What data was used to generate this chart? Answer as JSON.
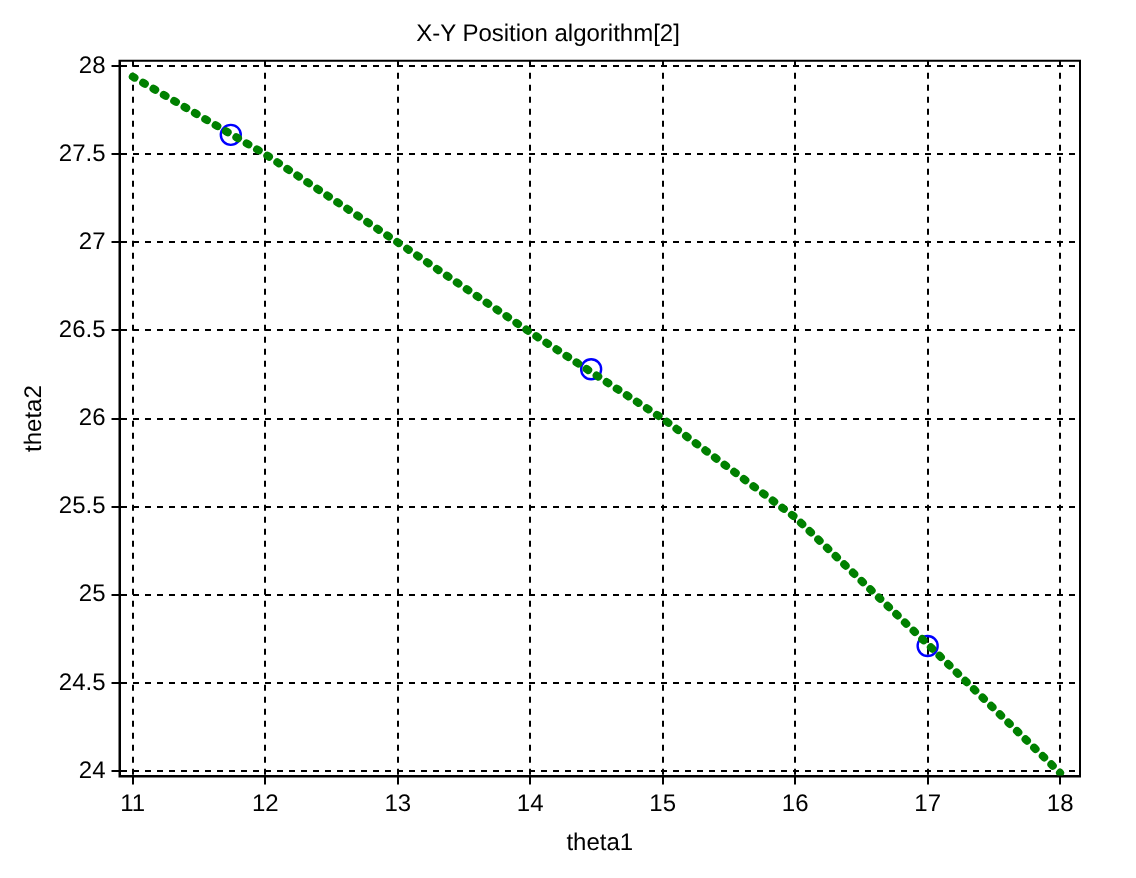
{
  "chart_data": {
    "type": "line",
    "title": "X-Y Position algorithm[2]",
    "xlabel": "theta1",
    "ylabel": "theta2",
    "xlim": [
      10.9,
      18.15
    ],
    "ylim": [
      23.97,
      28.03
    ],
    "xticks": [
      11,
      12,
      13,
      14,
      15,
      16,
      17,
      18
    ],
    "yticks": [
      24,
      24.5,
      25,
      25.5,
      26,
      26.5,
      27,
      27.5,
      28
    ],
    "grid": true,
    "legend": false,
    "series": [
      {
        "color": "#008000",
        "line_style": "dotted",
        "marker": "none",
        "x": [
          11,
          12,
          13,
          14,
          15,
          16,
          17,
          18
        ],
        "values": [
          27.94,
          27.5,
          27.0,
          26.49,
          26.0,
          25.44,
          24.72,
          23.99
        ]
      },
      {
        "type": "scatter",
        "color": "#0000ff",
        "marker": "circle",
        "x": [
          11.74,
          14.46,
          17.0
        ],
        "values": [
          27.61,
          26.28,
          24.71
        ]
      }
    ]
  }
}
